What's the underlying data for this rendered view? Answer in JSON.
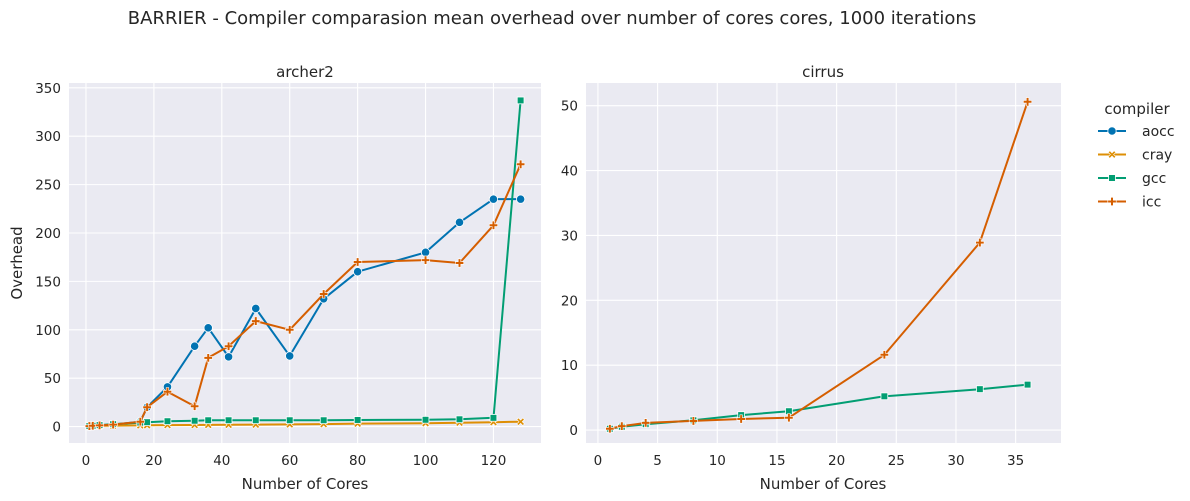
{
  "figure": {
    "suptitle": "BARRIER - Compiler comparasion mean overhead over number of cores cores, 1000 iterations",
    "legend_title": "compiler",
    "legend": [
      {
        "name": "aocc",
        "marker": "circle"
      },
      {
        "name": "cray",
        "marker": "x"
      },
      {
        "name": "gcc",
        "marker": "square"
      },
      {
        "name": "icc",
        "marker": "plus"
      }
    ],
    "colors": {
      "aocc": "#0173b2",
      "cray": "#de8f05",
      "gcc": "#029e73",
      "icc": "#d55e00",
      "plot_bg": "#eaeaf2"
    }
  },
  "chart_data": [
    {
      "type": "line",
      "title": "archer2",
      "xlabel": "Number of Cores",
      "ylabel": "Overhead",
      "xlim": [
        -5,
        134
      ],
      "ylim": [
        -17,
        355
      ],
      "xticks": [
        0,
        20,
        40,
        60,
        80,
        100,
        120
      ],
      "yticks": [
        0,
        50,
        100,
        150,
        200,
        250,
        300,
        350
      ],
      "grid": true,
      "series": [
        {
          "name": "aocc",
          "x": [
            1,
            2,
            4,
            8,
            16,
            18,
            24,
            32,
            36,
            42,
            50,
            60,
            70,
            80,
            100,
            110,
            120,
            128
          ],
          "y": [
            0.5,
            0.8,
            1.2,
            2,
            5,
            20,
            41,
            83,
            102,
            72,
            122,
            73,
            132,
            160,
            180,
            211,
            235,
            235
          ]
        },
        {
          "name": "cray",
          "x": [
            1,
            2,
            4,
            8,
            16,
            18,
            24,
            32,
            36,
            42,
            50,
            60,
            70,
            80,
            100,
            110,
            120,
            128
          ],
          "y": [
            0.3,
            0.5,
            0.8,
            1,
            1.2,
            1.3,
            1.5,
            1.6,
            1.7,
            1.8,
            2,
            2.2,
            2.5,
            3,
            3.5,
            4,
            4.5,
            5
          ]
        },
        {
          "name": "gcc",
          "x": [
            1,
            2,
            4,
            8,
            16,
            18,
            24,
            32,
            36,
            42,
            50,
            60,
            70,
            80,
            100,
            110,
            120,
            128
          ],
          "y": [
            0.5,
            0.8,
            1.5,
            2.5,
            4,
            4.5,
            5.5,
            6,
            6.5,
            6.5,
            6.5,
            6.5,
            6.5,
            6.8,
            7,
            7.5,
            9,
            337
          ]
        },
        {
          "name": "icc",
          "x": [
            1,
            2,
            4,
            8,
            16,
            18,
            24,
            32,
            36,
            42,
            50,
            60,
            70,
            80,
            100,
            110,
            120,
            128
          ],
          "y": [
            0.5,
            0.8,
            1.2,
            2,
            5,
            20,
            36,
            21,
            71,
            83,
            109,
            100,
            137,
            170,
            172,
            169,
            208,
            271
          ]
        }
      ]
    },
    {
      "type": "line",
      "title": "cirrus",
      "xlabel": "Number of Cores",
      "xlim": [
        -1,
        38.8
      ],
      "ylim": [
        -2,
        53.5
      ],
      "xticks": [
        0,
        5,
        10,
        15,
        20,
        25,
        30,
        35
      ],
      "yticks": [
        0,
        10,
        20,
        30,
        40,
        50
      ],
      "grid": true,
      "series": [
        {
          "name": "gcc",
          "x": [
            1,
            2,
            4,
            8,
            12,
            16,
            24,
            32,
            36
          ],
          "y": [
            0.2,
            0.5,
            0.9,
            1.5,
            2.3,
            2.9,
            5.2,
            6.3,
            7.0
          ]
        },
        {
          "name": "icc",
          "x": [
            1,
            2,
            4,
            8,
            12,
            16,
            24,
            32,
            36
          ],
          "y": [
            0.2,
            0.6,
            1.1,
            1.4,
            1.7,
            1.9,
            11.6,
            28.9,
            50.6
          ]
        }
      ]
    }
  ]
}
